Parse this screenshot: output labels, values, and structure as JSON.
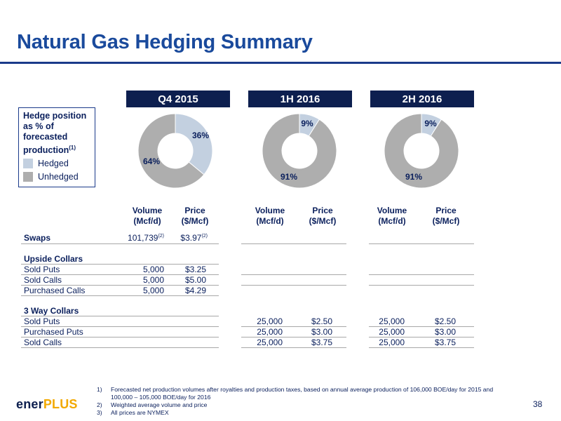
{
  "title": "Natural Gas Hedging Summary",
  "periods": [
    "Q4 2015",
    "1H 2016",
    "2H 2016"
  ],
  "legend": {
    "title": "Hedge position as % of forecasted production",
    "title_note": "(1)",
    "hedged_label": "Hedged",
    "unhedged_label": "Unhedged",
    "hedged_color": "#c3d0e0",
    "unhedged_color": "#aeaeae"
  },
  "chart_data": [
    {
      "type": "pie",
      "title": "Q4 2015",
      "categories": [
        "Hedged",
        "Unhedged"
      ],
      "values": [
        36,
        64
      ],
      "labels": [
        "36%",
        "64%"
      ]
    },
    {
      "type": "pie",
      "title": "1H 2016",
      "categories": [
        "Hedged",
        "Unhedged"
      ],
      "values": [
        9,
        91
      ],
      "labels": [
        "9%",
        "91%"
      ]
    },
    {
      "type": "pie",
      "title": "2H 2016",
      "categories": [
        "Hedged",
        "Unhedged"
      ],
      "values": [
        9,
        91
      ],
      "labels": [
        "9%",
        "91%"
      ]
    }
  ],
  "table": {
    "col_volume": "Volume",
    "col_volume_unit": "(Mcf/d)",
    "col_price": "Price",
    "col_price_unit": "($/Mcf)",
    "swaps_label": "Swaps",
    "swaps_q4_volume": "101,739",
    "swaps_q4_volume_note": "(2)",
    "swaps_q4_price": "$3.97",
    "swaps_q4_price_note": "(2)",
    "upside_collars_label": "Upside Collars",
    "uc_rows": [
      {
        "label": "Sold Puts",
        "volume": "5,000",
        "price": "$3.25"
      },
      {
        "label": "Sold Calls",
        "volume": "5,000",
        "price": "$5.00"
      },
      {
        "label": "Purchased Calls",
        "volume": "5,000",
        "price": "$4.29"
      }
    ],
    "three_way_label": "3 Way Collars",
    "tw_rows": [
      {
        "label": "Sold Puts",
        "h1_volume": "25,000",
        "h1_price": "$2.50",
        "h2_volume": "25,000",
        "h2_price": "$2.50"
      },
      {
        "label": "Purchased Puts",
        "h1_volume": "25,000",
        "h1_price": "$3.00",
        "h2_volume": "25,000",
        "h2_price": "$3.00"
      },
      {
        "label": "Sold Calls",
        "h1_volume": "25,000",
        "h1_price": "$3.75",
        "h2_volume": "25,000",
        "h2_price": "$3.75"
      }
    ]
  },
  "footnotes": [
    {
      "num": "1)",
      "text": "Forecasted net production volumes after royalties and production taxes, based on annual average production of 106,000 BOE/day for 2015 and 100,000 – 105,000 BOE/day for 2016"
    },
    {
      "num": "2)",
      "text": "Weighted average volume and price"
    },
    {
      "num": "3)",
      "text": "All prices are NYMEX"
    }
  ],
  "logo": {
    "part1": "ener",
    "part2": "PLUS"
  },
  "page_number": "38"
}
